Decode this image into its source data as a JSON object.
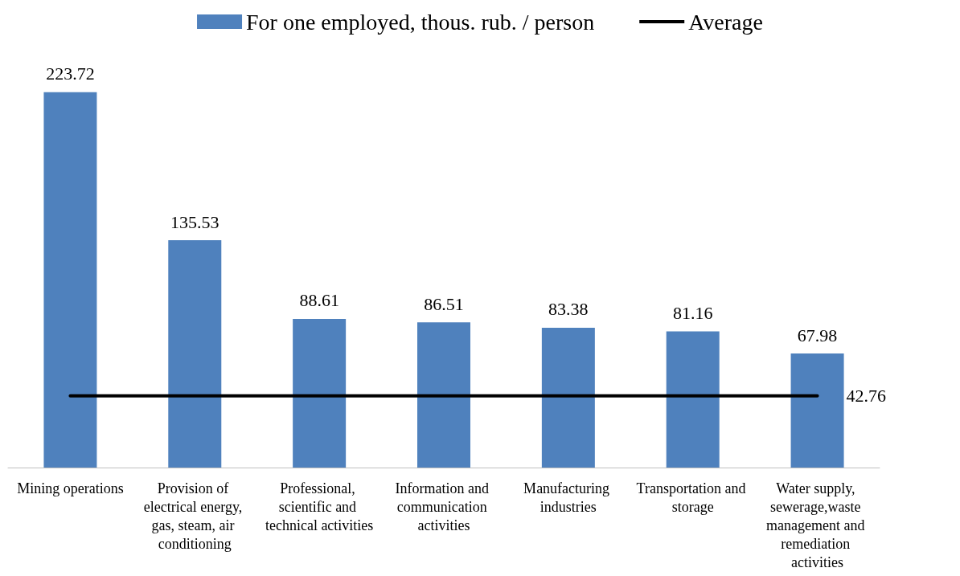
{
  "chart_data": {
    "type": "bar",
    "categories": [
      "Mining operations",
      "Provision of electrical energy, gas, steam, air conditioning",
      "Professional, scientific and technical activities",
      "Information and communication activities",
      "Manufacturing industries",
      "Transportation and storage",
      "Water supply, sewerage,waste management and remediation activities"
    ],
    "series": [
      {
        "name": "For one employed, thous. rub. / person",
        "color": "#4f81bd",
        "values": [
          223.72,
          135.53,
          88.61,
          86.51,
          83.38,
          81.16,
          67.98
        ],
        "data_labels": true
      },
      {
        "name": "Average",
        "type": "line",
        "color": "#000000",
        "values": [
          42.76,
          42.76,
          42.76,
          42.76,
          42.76,
          42.76,
          42.76
        ],
        "value_labels": [
          null,
          null,
          null,
          null,
          null,
          null,
          "42.76"
        ]
      }
    ],
    "legend": "top",
    "grid": false,
    "marker": "none"
  }
}
